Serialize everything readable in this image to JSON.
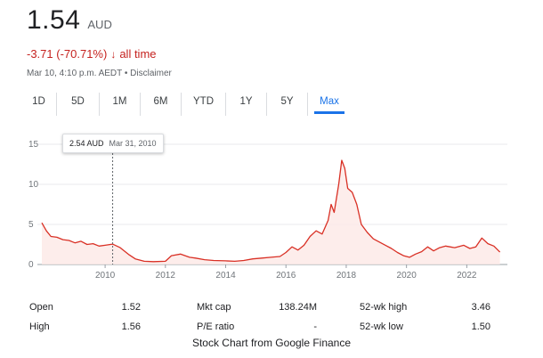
{
  "quote": {
    "price": "1.54",
    "currency": "AUD",
    "change": "-3.71 (-70.71%)",
    "change_arrow": "↓",
    "change_period": "all time",
    "timestamp": "Mar 10, 4:10 p.m. AEDT",
    "separator": "•",
    "disclaimer": "Disclaimer"
  },
  "tabs": [
    {
      "label": "1D"
    },
    {
      "label": "5D"
    },
    {
      "label": "1M"
    },
    {
      "label": "6M"
    },
    {
      "label": "YTD"
    },
    {
      "label": "1Y"
    },
    {
      "label": "5Y"
    },
    {
      "label": "Max",
      "active": true
    }
  ],
  "tooltip": {
    "price": "2.54 AUD",
    "date": "Mar 31, 2010"
  },
  "chart_data": {
    "type": "area",
    "x_ticks": [
      2010,
      2012,
      2014,
      2016,
      2018,
      2020,
      2022
    ],
    "y_ticks": [
      0,
      5,
      10,
      15
    ],
    "ylim": [
      0,
      15
    ],
    "xlim": [
      2007.9,
      2023.2
    ],
    "line_color": "#d93025",
    "fill_color": "#fce8e6",
    "grid": true,
    "series": [
      {
        "x": [
          2007.9,
          2008.05,
          2008.2,
          2008.4,
          2008.6,
          2008.8,
          2009.0,
          2009.2,
          2009.4,
          2009.6,
          2009.8,
          2010.0,
          2010.25,
          2010.5,
          2010.8,
          2011.0,
          2011.3,
          2011.6,
          2012.0,
          2012.2,
          2012.5,
          2012.8,
          2013.0,
          2013.3,
          2013.6,
          2014.0,
          2014.3,
          2014.6,
          2014.9,
          2015.2,
          2015.5,
          2015.8,
          2016.0,
          2016.2,
          2016.4,
          2016.6,
          2016.8,
          2017.0,
          2017.2,
          2017.4,
          2017.5,
          2017.6,
          2017.75,
          2017.85,
          2017.95,
          2018.05,
          2018.2,
          2018.35,
          2018.5,
          2018.7,
          2018.9,
          2019.1,
          2019.3,
          2019.5,
          2019.7,
          2019.9,
          2020.1,
          2020.3,
          2020.5,
          2020.7,
          2020.9,
          2021.1,
          2021.3,
          2021.6,
          2021.9,
          2022.1,
          2022.3,
          2022.5,
          2022.7,
          2022.9,
          2023.1
        ],
        "y": [
          5.2,
          4.2,
          3.5,
          3.4,
          3.1,
          3.0,
          2.7,
          2.9,
          2.5,
          2.6,
          2.3,
          2.4,
          2.54,
          2.1,
          1.2,
          0.7,
          0.4,
          0.35,
          0.4,
          1.1,
          1.3,
          0.9,
          0.8,
          0.6,
          0.5,
          0.45,
          0.4,
          0.5,
          0.7,
          0.8,
          0.9,
          1.0,
          1.5,
          2.2,
          1.8,
          2.4,
          3.5,
          4.2,
          3.8,
          5.5,
          7.5,
          6.5,
          10.0,
          13.0,
          12.0,
          9.5,
          9.0,
          7.5,
          5.0,
          4.0,
          3.2,
          2.8,
          2.4,
          2.0,
          1.5,
          1.1,
          0.9,
          1.3,
          1.6,
          2.2,
          1.7,
          2.1,
          2.3,
          2.1,
          2.4,
          2.0,
          2.2,
          3.3,
          2.6,
          2.3,
          1.54
        ]
      }
    ]
  },
  "stats": {
    "open_label": "Open",
    "open_value": "1.52",
    "high_label": "High",
    "high_value": "1.56",
    "mktcap_label": "Mkt cap",
    "mktcap_value": "138.24M",
    "pe_label": "P/E ratio",
    "pe_value": "-",
    "wk52high_label": "52-wk high",
    "wk52high_value": "3.46",
    "wk52low_label": "52-wk low",
    "wk52low_value": "1.50"
  },
  "footer": "Stock Chart from Google Finance"
}
